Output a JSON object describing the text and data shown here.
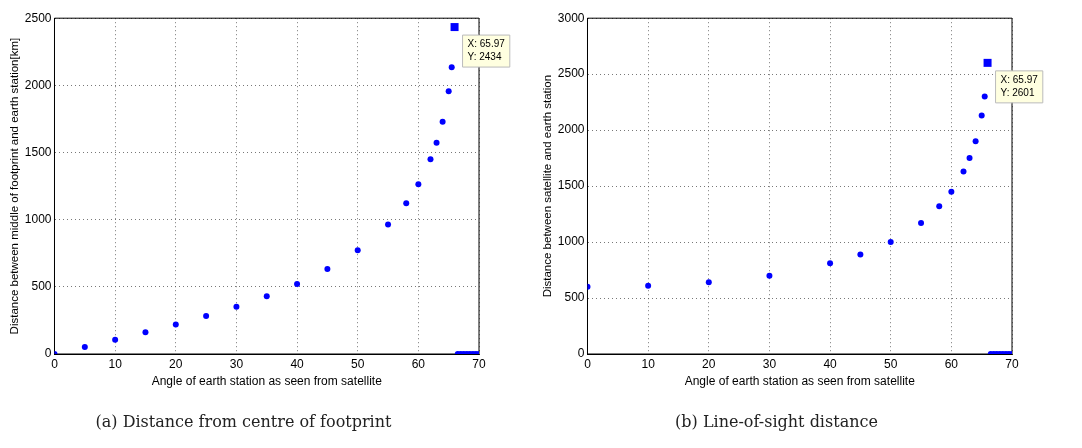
{
  "chart_data": [
    {
      "type": "scatter",
      "title": "(a) Distance from centre of footprint",
      "xlabel": "Angle of earth station as seen from satellite",
      "ylabel": "Distance between middle of footprint and earth station[km]",
      "x": [
        0,
        5,
        10,
        15,
        20,
        25,
        30,
        35,
        40,
        45,
        50,
        55,
        58,
        60,
        62,
        63,
        64,
        65,
        65.5,
        65.97,
        66.5,
        67,
        67.5,
        68,
        68.5,
        69,
        69.5,
        70
      ],
      "series": [
        {
          "color": "#0000ff",
          "values": [
            0,
            53,
            106,
            161,
            220,
            283,
            352,
            430,
            522,
            633,
            773,
            965,
            1122,
            1264,
            1450,
            1572,
            1730,
            1957,
            2135,
            2434,
            0,
            0,
            0,
            0,
            0,
            0,
            0,
            0
          ]
        }
      ],
      "xlim": [
        0,
        70
      ],
      "xticks": [
        0,
        10,
        20,
        30,
        40,
        50,
        60,
        70
      ],
      "ylim": [
        0,
        2500
      ],
      "yticks": [
        0,
        500,
        1000,
        1500,
        2000,
        2500
      ],
      "grid": true,
      "marker": "circle",
      "annotations": [
        {
          "text": "X: 65.97\nY: 2434",
          "x": 65.97,
          "y": 2434
        }
      ]
    },
    {
      "type": "scatter",
      "title": "(b) Line-of-sight distance",
      "xlabel": "Angle of earth station as seen from satellite",
      "ylabel": "Distance between satellite and earth station",
      "x": [
        0,
        10,
        20,
        30,
        40,
        45,
        50,
        55,
        58,
        60,
        62,
        63,
        64,
        65,
        65.5,
        65.97,
        66.5,
        67,
        67.5,
        68,
        68.5,
        69,
        69.5,
        70
      ],
      "series": [
        {
          "color": "#0000ff",
          "values": [
            600,
            610,
            640,
            700,
            810,
            890,
            1000,
            1170,
            1320,
            1450,
            1630,
            1750,
            1900,
            2130,
            2300,
            2601,
            0,
            0,
            0,
            0,
            0,
            0,
            0,
            0
          ]
        }
      ],
      "xlim": [
        0,
        70
      ],
      "xticks": [
        0,
        10,
        20,
        30,
        40,
        50,
        60,
        70
      ],
      "ylim": [
        0,
        3000
      ],
      "yticks": [
        0,
        500,
        1000,
        1500,
        2000,
        2500,
        3000
      ],
      "grid": true,
      "marker": "circle",
      "annotations": [
        {
          "text": "X: 65.97\nY: 2601",
          "x": 65.97,
          "y": 2601
        }
      ]
    }
  ]
}
